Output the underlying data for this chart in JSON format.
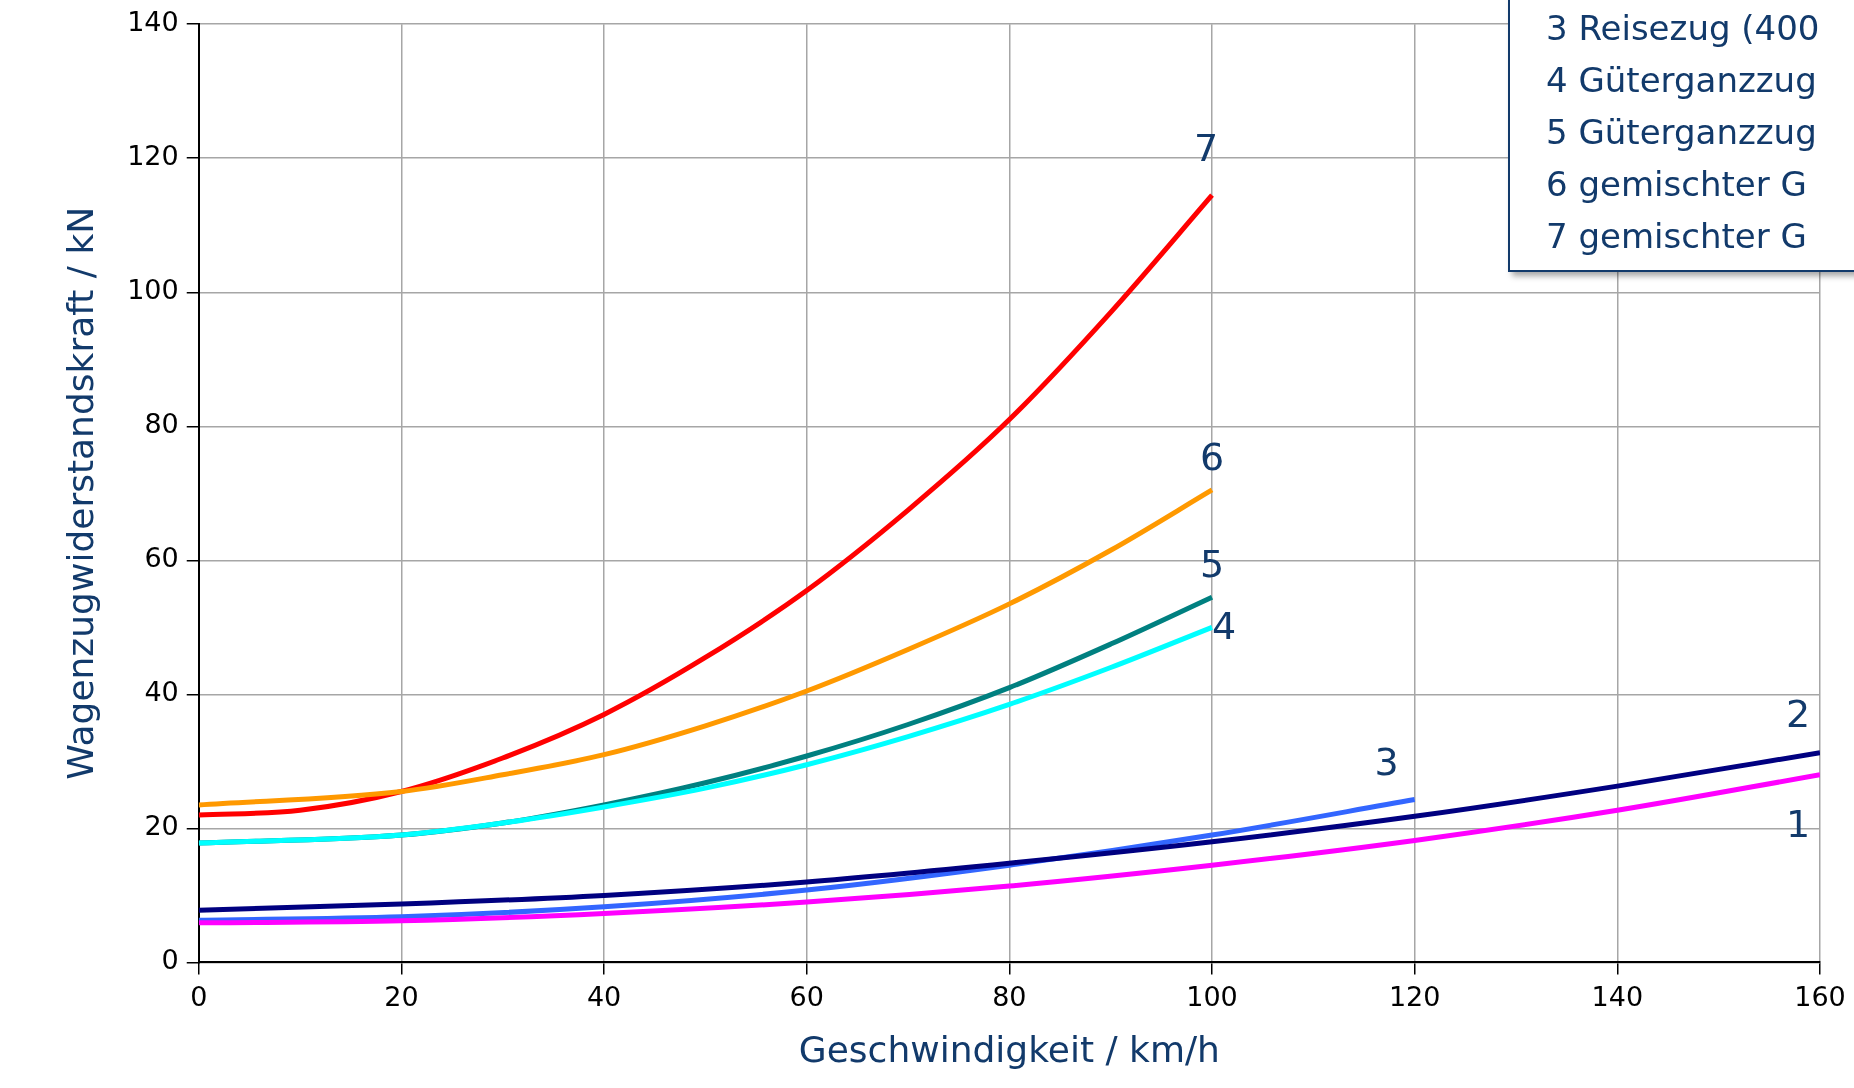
{
  "chart_data": {
    "type": "line",
    "xlabel": "Geschwindigkeit / km/h",
    "ylabel": "Wagenzugwiderstandskraft / kN",
    "xlim": [
      0,
      160
    ],
    "xticks": [
      0,
      20,
      40,
      60,
      80,
      100,
      120,
      140,
      160
    ],
    "ylim": [
      0,
      140
    ],
    "yticks": [
      0,
      20,
      40,
      60,
      80,
      100,
      120,
      140
    ],
    "grid": true,
    "legend": false,
    "marker": "none",
    "line_style": "solid",
    "annotations": [
      "3 Reisezug (400",
      "4 Güterganzzug",
      "5 Güterganzzug",
      "6 gemischter G",
      "7 gemischter G"
    ],
    "series": [
      {
        "name": "1",
        "color": "#ff00ff",
        "x": [
          0,
          20,
          40,
          60,
          80,
          100,
          120,
          140,
          160
        ],
        "values": [
          5.9,
          6.2,
          7.3,
          9,
          11.4,
          14.5,
          18.2,
          22.7,
          28
        ]
      },
      {
        "name": "2",
        "color": "#000080",
        "x": [
          0,
          20,
          40,
          60,
          80,
          100,
          120,
          140,
          160
        ],
        "values": [
          7.8,
          8.7,
          10,
          12,
          14.8,
          18,
          21.8,
          26.3,
          31.3
        ]
      },
      {
        "name": "3",
        "color": "#3366ff",
        "x": [
          0,
          20,
          40,
          60,
          80,
          100,
          120
        ],
        "values": [
          6.3,
          6.8,
          8.3,
          10.8,
          14.5,
          19,
          24.3
        ]
      },
      {
        "name": "4",
        "color": "#00ffff",
        "x": [
          0,
          20,
          30,
          40,
          50,
          60,
          70,
          80,
          90,
          100
        ],
        "values": [
          17.8,
          19,
          20.8,
          23.2,
          26,
          29.5,
          33.7,
          38.5,
          44,
          50
        ]
      },
      {
        "name": "5",
        "color": "#008080",
        "x": [
          0,
          20,
          30,
          40,
          50,
          60,
          70,
          80,
          90,
          100
        ],
        "values": [
          17.8,
          19,
          20.8,
          23.5,
          26.8,
          30.8,
          35.5,
          41,
          47.5,
          54.5
        ]
      },
      {
        "name": "6",
        "color": "#ff9900",
        "x": [
          0,
          20,
          30,
          40,
          50,
          60,
          70,
          80,
          90,
          100
        ],
        "values": [
          23.5,
          25.5,
          28,
          31,
          35.3,
          40.5,
          46.7,
          53.5,
          61.5,
          70.5
        ]
      },
      {
        "name": "7",
        "color": "#ff0000",
        "x": [
          0,
          10,
          20,
          30,
          40,
          50,
          60,
          70,
          80,
          90,
          100
        ],
        "values": [
          22,
          22.7,
          25.5,
          30.5,
          37,
          45.5,
          55.5,
          67.5,
          81,
          97,
          114.5
        ]
      }
    ]
  }
}
